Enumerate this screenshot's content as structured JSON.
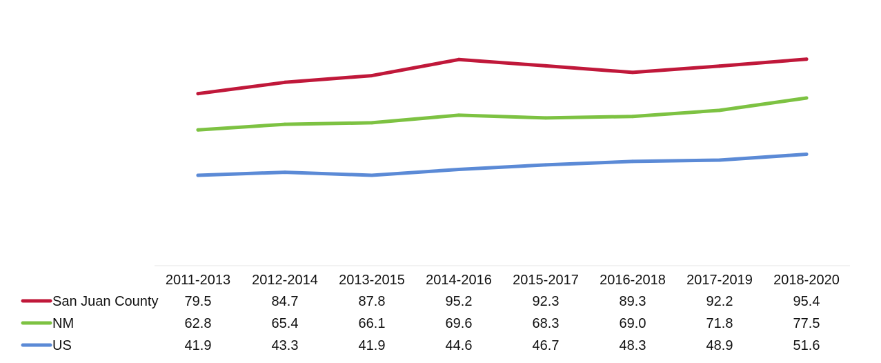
{
  "chart_data": {
    "type": "line",
    "categories": [
      "2011-2013",
      "2012-2014",
      "2013-2015",
      "2014-2016",
      "2015-2017",
      "2016-2018",
      "2017-2019",
      "2018-2020"
    ],
    "series": [
      {
        "name": "San Juan County",
        "color": "#c0183a",
        "values": [
          79.5,
          84.7,
          87.8,
          95.2,
          92.3,
          89.3,
          92.2,
          95.4
        ],
        "labels": [
          "79.5",
          "84.7",
          "87.8",
          "95.2",
          "92.3",
          "89.3",
          "92.2",
          "95.4"
        ]
      },
      {
        "name": "NM",
        "color": "#7dc242",
        "values": [
          62.8,
          65.4,
          66.1,
          69.6,
          68.3,
          69.0,
          71.8,
          77.5
        ],
        "labels": [
          "62.8",
          "65.4",
          "66.1",
          "69.6",
          "68.3",
          "69.0",
          "71.8",
          "77.5"
        ]
      },
      {
        "name": "US",
        "color": "#5b8ad6",
        "values": [
          41.9,
          43.3,
          41.9,
          44.6,
          46.7,
          48.3,
          48.9,
          51.6
        ],
        "labels": [
          "41.9",
          "43.3",
          "41.9",
          "44.6",
          "46.7",
          "48.3",
          "48.9",
          "51.6"
        ]
      }
    ],
    "data_table": true,
    "grid": false,
    "legend": "data-table-rows"
  }
}
